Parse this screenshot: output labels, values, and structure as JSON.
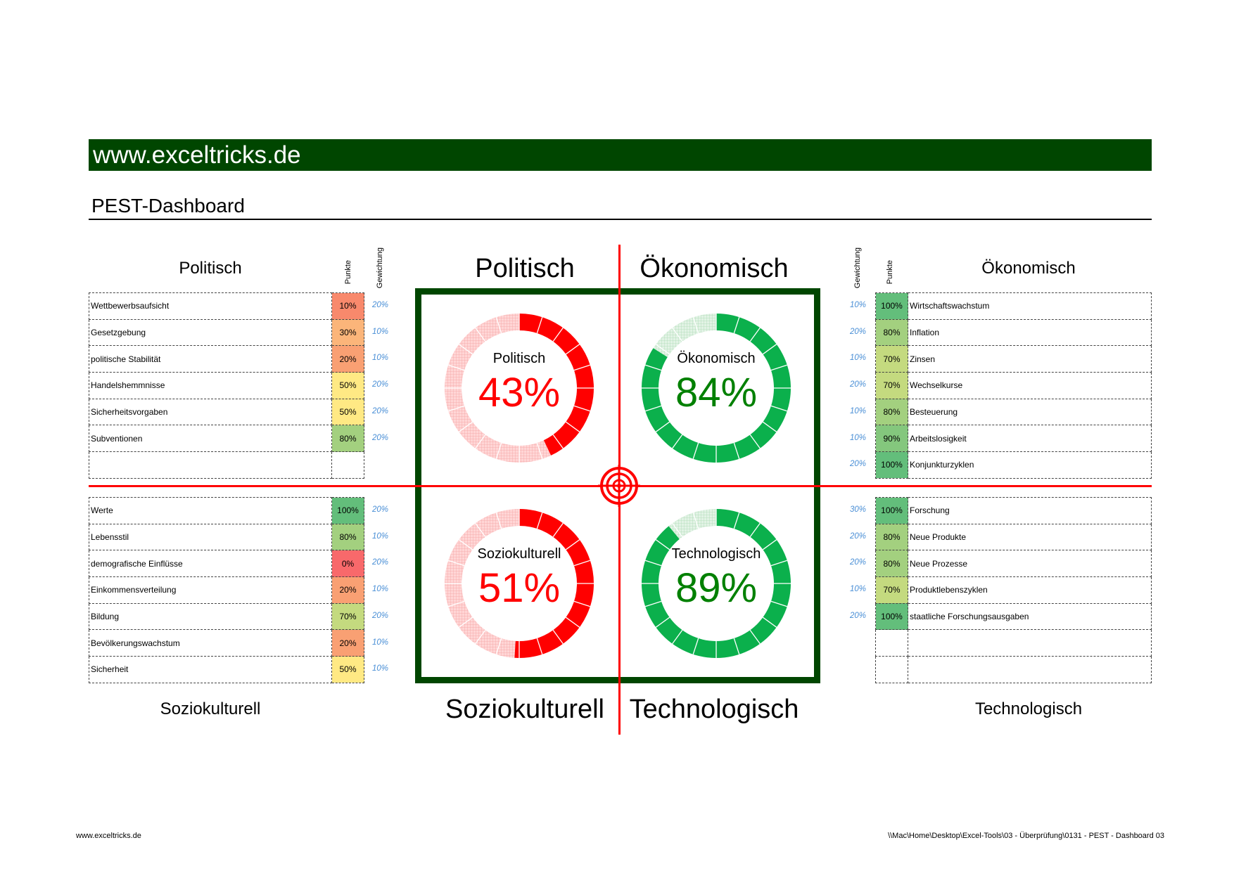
{
  "header": {
    "brand": "www.exceltricks.de",
    "title": "PEST-Dashboard"
  },
  "column_labels": {
    "points": "Punkte",
    "weight": "Gewichtung"
  },
  "colors": {
    "brand_green": "#004600",
    "red": "#ff0000",
    "red_light": "#ffc4c4",
    "green": "#0bb04c",
    "green_light": "#d2ecd6",
    "weight_text": "#4a8fd6"
  },
  "sections": {
    "politisch": {
      "title": "Politisch",
      "score": "43%",
      "score_value": 43,
      "color": "red",
      "rows": [
        {
          "label": "Wettbewerbsaufsicht",
          "points": "10%",
          "weight": "20%",
          "fill": "#f8896c"
        },
        {
          "label": "Gesetzgebung",
          "points": "30%",
          "weight": "10%",
          "fill": "#fbb57a"
        },
        {
          "label": "politische Stabilität",
          "points": "20%",
          "weight": "10%",
          "fill": "#f9a073"
        },
        {
          "label": "Handelshemmnisse",
          "points": "50%",
          "weight": "20%",
          "fill": "#ffe984"
        },
        {
          "label": "Sicherheitsvorgaben",
          "points": "50%",
          "weight": "20%",
          "fill": "#ffe984"
        },
        {
          "label": "Subventionen",
          "points": "80%",
          "weight": "20%",
          "fill": "#a3d07f"
        },
        {
          "label": "",
          "points": "",
          "weight": "",
          "fill": ""
        }
      ]
    },
    "oekonomisch": {
      "title": "Ökonomisch",
      "score": "84%",
      "score_value": 84,
      "color": "green",
      "rows": [
        {
          "label": "Wirtschaftswachstum",
          "points": "100%",
          "weight": "10%",
          "fill": "#63be7b"
        },
        {
          "label": "Inflation",
          "points": "80%",
          "weight": "20%",
          "fill": "#a3d07f"
        },
        {
          "label": "Zinsen",
          "points": "70%",
          "weight": "10%",
          "fill": "#c4da7f"
        },
        {
          "label": "Wechselkurse",
          "points": "70%",
          "weight": "20%",
          "fill": "#c4da7f"
        },
        {
          "label": "Besteuerung",
          "points": "80%",
          "weight": "10%",
          "fill": "#a3d07f"
        },
        {
          "label": "Arbeitslosigkeit",
          "points": "90%",
          "weight": "10%",
          "fill": "#84c77d"
        },
        {
          "label": "Konjunkturzyklen",
          "points": "100%",
          "weight": "20%",
          "fill": "#63be7b"
        }
      ]
    },
    "soziokulturell": {
      "title": "Soziokulturell",
      "score": "51%",
      "score_value": 51,
      "color": "red",
      "rows": [
        {
          "label": "Werte",
          "points": "100%",
          "weight": "20%",
          "fill": "#63be7b"
        },
        {
          "label": "Lebensstil",
          "points": "80%",
          "weight": "10%",
          "fill": "#a3d07f"
        },
        {
          "label": "demografische Einflüsse",
          "points": "0%",
          "weight": "20%",
          "fill": "#f8696b"
        },
        {
          "label": "Einkommensverteilung",
          "points": "20%",
          "weight": "10%",
          "fill": "#f9a073"
        },
        {
          "label": "Bildung",
          "points": "70%",
          "weight": "20%",
          "fill": "#c4da7f"
        },
        {
          "label": "Bevölkerungswachstum",
          "points": "20%",
          "weight": "10%",
          "fill": "#f9a073"
        },
        {
          "label": "Sicherheit",
          "points": "50%",
          "weight": "10%",
          "fill": "#ffe984"
        }
      ]
    },
    "technologisch": {
      "title": "Technologisch",
      "score": "89%",
      "score_value": 89,
      "color": "green",
      "rows": [
        {
          "label": "Forschung",
          "points": "100%",
          "weight": "30%",
          "fill": "#63be7b"
        },
        {
          "label": "Neue Produkte",
          "points": "80%",
          "weight": "20%",
          "fill": "#a3d07f"
        },
        {
          "label": "Neue  Prozesse",
          "points": "80%",
          "weight": "20%",
          "fill": "#a3d07f"
        },
        {
          "label": "Produktlebenszyklen",
          "points": "70%",
          "weight": "10%",
          "fill": "#c4da7f"
        },
        {
          "label": "staatliche Forschungsausgaben",
          "points": "100%",
          "weight": "20%",
          "fill": "#63be7b"
        },
        {
          "label": "",
          "points": "",
          "weight": "",
          "fill": ""
        },
        {
          "label": "",
          "points": "",
          "weight": "",
          "fill": ""
        }
      ]
    }
  },
  "footer": {
    "left": "www.exceltricks.de",
    "right": "\\\\Mac\\Home\\Desktop\\Excel-Tools\\03 - Überprüfung\\0131 - PEST - Dashboard 03"
  }
}
